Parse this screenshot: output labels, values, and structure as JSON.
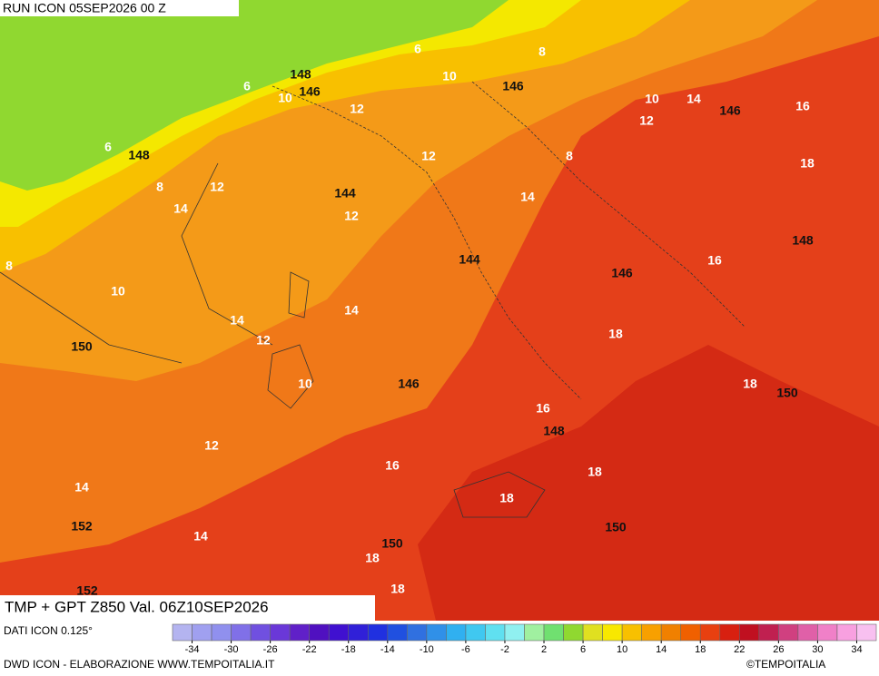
{
  "header": {
    "run": "RUN ICON 05SEP2026 00 Z",
    "field": "TMP + GPT Z850 Val. 06Z10SEP2026"
  },
  "isotherm_labels": [
    6,
    8,
    6,
    10,
    10,
    12,
    10,
    14,
    16,
    12,
    6,
    12,
    8,
    18,
    8,
    12,
    14,
    12,
    14,
    8,
    10,
    16,
    14,
    14,
    12,
    18,
    10,
    18,
    16,
    12,
    16,
    18,
    14,
    18,
    14,
    18,
    18
  ],
  "geopotential_labels": [
    148,
    146,
    146,
    146,
    148,
    144,
    148,
    144,
    146,
    150,
    146,
    150,
    148,
    152,
    150,
    150,
    152
  ],
  "colorbar": {
    "limits": [
      -36,
      36
    ],
    "colors": [
      "#b4b4f0",
      "#a0a0f0",
      "#9090ee",
      "#8070e8",
      "#7050e0",
      "#6a38d8",
      "#6020c8",
      "#5010c0",
      "#4010d0",
      "#3020d8",
      "#2030e0",
      "#2050e0",
      "#3070e0",
      "#3090e8",
      "#30b0f0",
      "#40c8f0",
      "#60e0f0",
      "#90f0f0",
      "#a0f0a0",
      "#70e070",
      "#90d830",
      "#e0e020",
      "#f8e800",
      "#f8c000",
      "#f8a000",
      "#f08000",
      "#f06000",
      "#e84010",
      "#d82010",
      "#c01020",
      "#c02050",
      "#d04080",
      "#e060a8",
      "#f080c8",
      "#f8a0e0",
      "#f8c0f0"
    ],
    "ticks": [
      -34,
      -30,
      -26,
      -22,
      -18,
      -14,
      -10,
      -6,
      -2,
      2,
      6,
      10,
      14,
      18,
      22,
      26,
      30,
      34
    ]
  },
  "footer": {
    "data": "DATI ICON 0.125°",
    "credit": "DWD ICON - ELABORAZIONE WWW.TEMPOITALIA.IT",
    "copyright": "©TEMPOITALIA"
  }
}
